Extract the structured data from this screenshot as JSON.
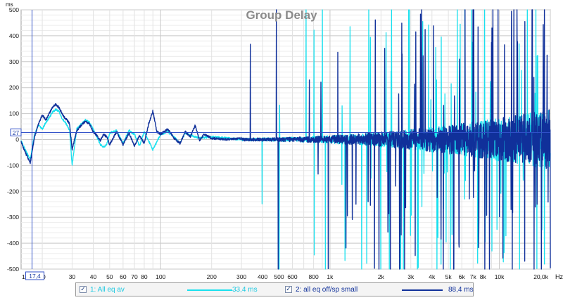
{
  "chart_data": {
    "type": "line",
    "title": "Group Delay",
    "ylabel_unit": "ms",
    "xlabel_unit": "Hz",
    "x_scale": "log",
    "xlim": [
      15,
      20000
    ],
    "ylim": [
      -500,
      500
    ],
    "y_ticks": [
      "500",
      "400",
      "300",
      "200",
      "100",
      "0",
      "-100",
      "-200",
      "-300",
      "-400",
      "-500"
    ],
    "x_ticks": [
      "15",
      "20",
      "30",
      "40",
      "50",
      "60",
      "70",
      "80",
      "100",
      "200",
      "300",
      "400",
      "500",
      "600",
      "800",
      "1k",
      "2k",
      "3k",
      "4k",
      "5k",
      "6k",
      "7k",
      "8k",
      "10k",
      "20,0k"
    ],
    "grid": true,
    "cursor": {
      "x_readout": "17,4",
      "y_readout": "27",
      "x_hz": 17.4,
      "y_ms": 27
    },
    "series": [
      {
        "name": "1: All eq av",
        "color": "#19e0ee",
        "legend_value": "33,4 ms",
        "points": [
          [
            15,
            -5
          ],
          [
            16,
            -45
          ],
          [
            17,
            -75
          ],
          [
            18,
            20
          ],
          [
            19,
            55
          ],
          [
            20,
            40
          ],
          [
            21,
            65
          ],
          [
            22,
            85
          ],
          [
            23,
            105
          ],
          [
            24,
            115
          ],
          [
            25,
            110
          ],
          [
            26,
            85
          ],
          [
            27,
            70
          ],
          [
            28,
            55
          ],
          [
            29,
            35
          ],
          [
            30,
            -100
          ],
          [
            32,
            40
          ],
          [
            34,
            60
          ],
          [
            36,
            75
          ],
          [
            38,
            65
          ],
          [
            40,
            40
          ],
          [
            42,
            10
          ],
          [
            44,
            -20
          ],
          [
            46,
            -30
          ],
          [
            48,
            -20
          ],
          [
            50,
            25
          ],
          [
            55,
            35
          ],
          [
            60,
            -15
          ],
          [
            65,
            35
          ],
          [
            70,
            20
          ],
          [
            75,
            -25
          ],
          [
            80,
            30
          ],
          [
            90,
            -40
          ],
          [
            100,
            20
          ],
          [
            110,
            30
          ],
          [
            120,
            10
          ],
          [
            130,
            -15
          ],
          [
            140,
            25
          ],
          [
            150,
            15
          ],
          [
            170,
            5
          ],
          [
            200,
            10
          ],
          [
            250,
            5
          ],
          [
            300,
            0
          ]
        ]
      },
      {
        "name": "2: all eq off/sp small",
        "color": "#10309a",
        "legend_value": "88,4 ms",
        "points": [
          [
            15,
            -10
          ],
          [
            16,
            -55
          ],
          [
            17,
            -90
          ],
          [
            18,
            10
          ],
          [
            19,
            60
          ],
          [
            20,
            95
          ],
          [
            21,
            75
          ],
          [
            22,
            100
          ],
          [
            23,
            125
          ],
          [
            24,
            135
          ],
          [
            25,
            125
          ],
          [
            26,
            105
          ],
          [
            27,
            85
          ],
          [
            28,
            75
          ],
          [
            29,
            60
          ],
          [
            30,
            -40
          ],
          [
            32,
            35
          ],
          [
            34,
            55
          ],
          [
            36,
            70
          ],
          [
            38,
            60
          ],
          [
            40,
            30
          ],
          [
            42,
            15
          ],
          [
            44,
            -5
          ],
          [
            46,
            20
          ],
          [
            48,
            10
          ],
          [
            50,
            -20
          ],
          [
            55,
            30
          ],
          [
            60,
            -20
          ],
          [
            65,
            25
          ],
          [
            70,
            -25
          ],
          [
            75,
            15
          ],
          [
            80,
            -15
          ],
          [
            85,
            60
          ],
          [
            90,
            110
          ],
          [
            95,
            30
          ],
          [
            100,
            20
          ],
          [
            110,
            40
          ],
          [
            120,
            5
          ],
          [
            130,
            -15
          ],
          [
            140,
            30
          ],
          [
            150,
            10
          ],
          [
            160,
            55
          ],
          [
            170,
            -5
          ],
          [
            180,
            20
          ],
          [
            200,
            5
          ],
          [
            250,
            0
          ],
          [
            300,
            5
          ]
        ]
      }
    ]
  },
  "legend": {
    "item1_label": "1: All eq av",
    "item1_value": "33,4 ms",
    "item1_checked": "✓",
    "item2_label": "2: all eq off/sp small",
    "item2_value": "88,4 ms",
    "item2_checked": "✓"
  }
}
